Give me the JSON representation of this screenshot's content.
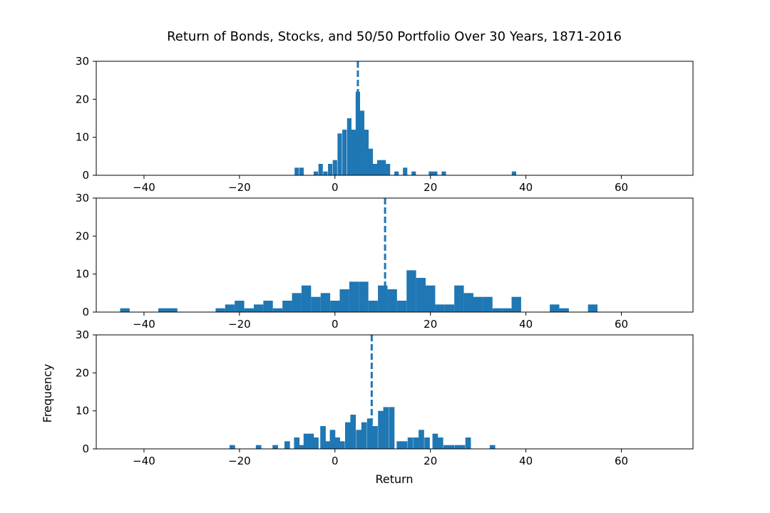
{
  "figure": {
    "title": "Return of Bonds, Stocks, and 50/50 Portfolio Over 30 Years, 1871-2016",
    "xlabel": "Return",
    "ylabel": "Frequency"
  },
  "colors": {
    "bar": "#1f77b4",
    "mean_line": "#1f77b4",
    "axis": "#000000",
    "background": "#ffffff"
  },
  "chart_data": [
    {
      "type": "bar",
      "xlim": [
        -50,
        75
      ],
      "ylim": [
        0,
        30
      ],
      "xticks": [
        -40,
        -20,
        0,
        20,
        40,
        60
      ],
      "yticks": [
        0,
        10,
        20,
        30
      ],
      "mean": 4.8,
      "bin_width": 0.92,
      "bins": [
        [
          -8,
          2
        ],
        [
          -7,
          2
        ],
        [
          -4,
          1
        ],
        [
          -3,
          3
        ],
        [
          -2,
          1
        ],
        [
          -1,
          3
        ],
        [
          0,
          4
        ],
        [
          1,
          11
        ],
        [
          2,
          12
        ],
        [
          3,
          15
        ],
        [
          3.9,
          12
        ],
        [
          4.8,
          22
        ],
        [
          5.7,
          17
        ],
        [
          6.6,
          12
        ],
        [
          7.5,
          7
        ],
        [
          8.4,
          3
        ],
        [
          9.3,
          4
        ],
        [
          10.2,
          4
        ],
        [
          11.1,
          3
        ],
        [
          12.9,
          1
        ],
        [
          14.7,
          2
        ],
        [
          16.5,
          1
        ],
        [
          20.1,
          1
        ],
        [
          21,
          1
        ],
        [
          22.8,
          1
        ],
        [
          37.5,
          1
        ]
      ]
    },
    {
      "type": "bar",
      "xlim": [
        -50,
        75
      ],
      "ylim": [
        0,
        30
      ],
      "xticks": [
        -40,
        -20,
        0,
        20,
        40,
        60
      ],
      "yticks": [
        0,
        10,
        20,
        30
      ],
      "mean": 10.5,
      "bin_width": 2.0,
      "bins": [
        [
          -44,
          1
        ],
        [
          -36,
          1
        ],
        [
          -34,
          1
        ],
        [
          -24,
          1
        ],
        [
          -22,
          2
        ],
        [
          -20,
          3
        ],
        [
          -18,
          1
        ],
        [
          -16,
          2
        ],
        [
          -14,
          3
        ],
        [
          -12,
          1
        ],
        [
          -10,
          3
        ],
        [
          -8,
          5
        ],
        [
          -6,
          7
        ],
        [
          -4,
          4
        ],
        [
          -2,
          5
        ],
        [
          0,
          3
        ],
        [
          2,
          6
        ],
        [
          4,
          8
        ],
        [
          6,
          8
        ],
        [
          8,
          3
        ],
        [
          10,
          7
        ],
        [
          12,
          6
        ],
        [
          14,
          3
        ],
        [
          16,
          11
        ],
        [
          18,
          9
        ],
        [
          20,
          7
        ],
        [
          22,
          2
        ],
        [
          24,
          2
        ],
        [
          26,
          7
        ],
        [
          28,
          5
        ],
        [
          30,
          4
        ],
        [
          32,
          4
        ],
        [
          34,
          1
        ],
        [
          36,
          1
        ],
        [
          38,
          4
        ],
        [
          46,
          2
        ],
        [
          48,
          1
        ],
        [
          54,
          2
        ]
      ]
    },
    {
      "type": "bar",
      "xlim": [
        -50,
        75
      ],
      "ylim": [
        0,
        30
      ],
      "xticks": [
        -40,
        -20,
        0,
        20,
        40,
        60
      ],
      "yticks": [
        0,
        10,
        20,
        30
      ],
      "mean": 7.7,
      "bin_width": 1.15,
      "bins": [
        [
          -21.5,
          1
        ],
        [
          -16,
          1
        ],
        [
          -12.5,
          1
        ],
        [
          -10,
          2
        ],
        [
          -8,
          3
        ],
        [
          -7,
          1
        ],
        [
          -6,
          4
        ],
        [
          -5,
          4
        ],
        [
          -4,
          3
        ],
        [
          -2.5,
          6
        ],
        [
          -1.5,
          2
        ],
        [
          -0.5,
          5
        ],
        [
          0.5,
          3
        ],
        [
          1.5,
          2
        ],
        [
          2.7,
          7
        ],
        [
          3.8,
          9
        ],
        [
          5,
          5
        ],
        [
          6.1,
          7
        ],
        [
          7.3,
          8
        ],
        [
          8.4,
          6
        ],
        [
          9.6,
          10
        ],
        [
          10.7,
          11
        ],
        [
          11.9,
          11
        ],
        [
          13.5,
          2
        ],
        [
          14.6,
          2
        ],
        [
          15.8,
          3
        ],
        [
          17,
          3
        ],
        [
          18.1,
          5
        ],
        [
          19.3,
          3
        ],
        [
          21,
          4
        ],
        [
          22.1,
          3
        ],
        [
          23.3,
          1
        ],
        [
          24.4,
          1
        ],
        [
          25.6,
          1
        ],
        [
          26.7,
          1
        ],
        [
          27.9,
          3
        ],
        [
          33,
          1
        ]
      ]
    }
  ]
}
